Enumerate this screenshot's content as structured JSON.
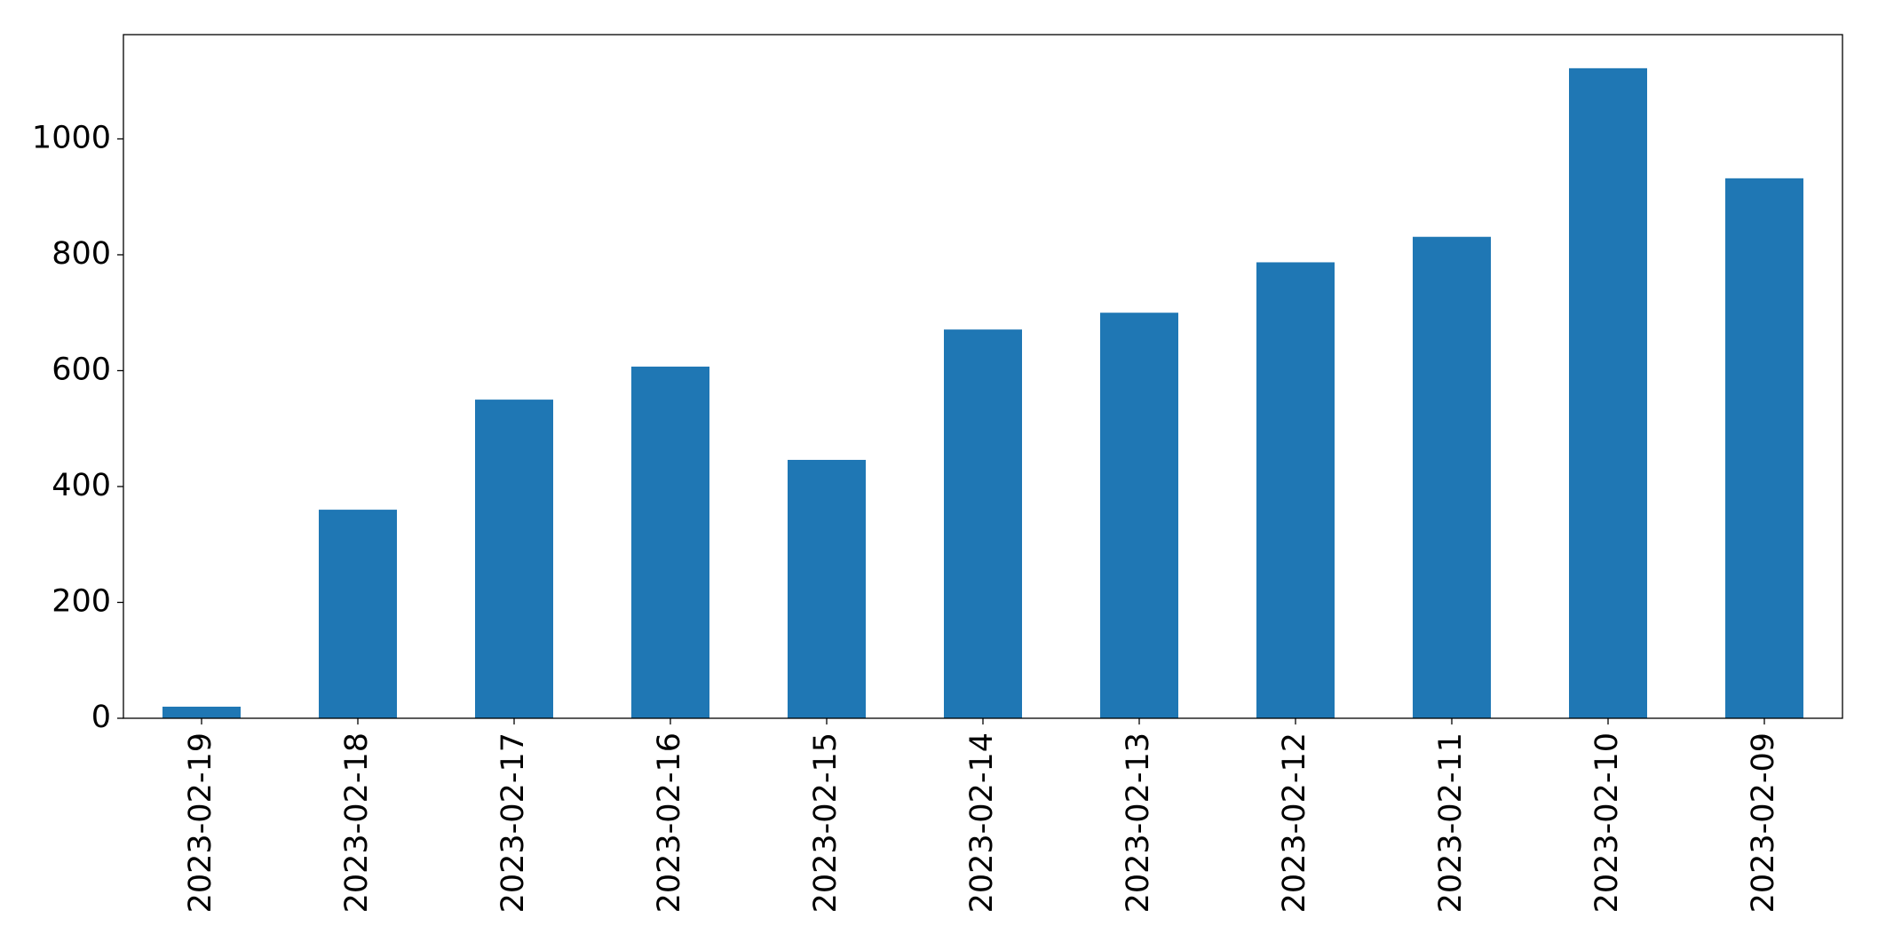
{
  "chart_data": {
    "type": "bar",
    "categories": [
      "2023-02-19",
      "2023-02-18",
      "2023-02-17",
      "2023-02-16",
      "2023-02-15",
      "2023-02-14",
      "2023-02-13",
      "2023-02-12",
      "2023-02-11",
      "2023-02-10",
      "2023-02-09"
    ],
    "values": [
      20,
      360,
      550,
      607,
      446,
      671,
      700,
      787,
      831,
      1122,
      932
    ],
    "color": "#1f77b4",
    "ylim": [
      0,
      1180
    ],
    "yticks": [
      0,
      200,
      400,
      600,
      800,
      1000
    ],
    "grid": false
  }
}
